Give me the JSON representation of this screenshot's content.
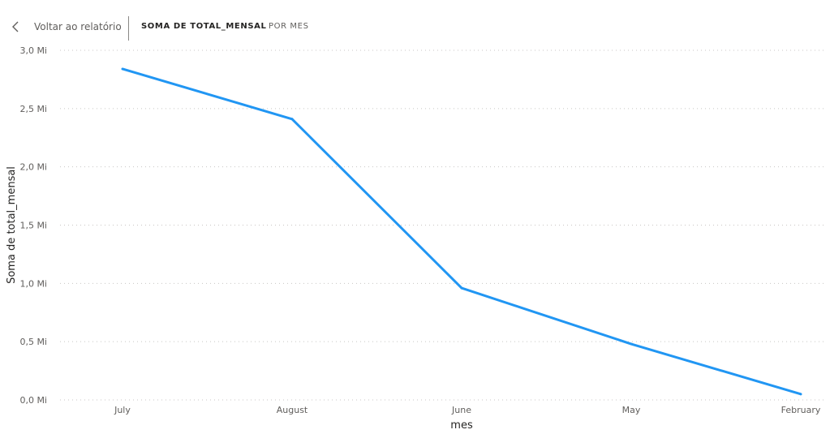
{
  "toolbar": {
    "back_label": "Voltar ao relatório",
    "tabs": [
      {
        "label": "SOMA DE TOTAL_MENSAL",
        "active": true
      },
      {
        "label": "POR MES",
        "active": false
      }
    ]
  },
  "colors": {
    "line": "#2196f3",
    "grid": "#c8c6c4",
    "text": "#605e5c",
    "axis_title": "#252423"
  },
  "chart_data": {
    "type": "line",
    "title": "",
    "xlabel": "mes",
    "ylabel": "Soma de total_mensal",
    "categories": [
      "July",
      "August",
      "June",
      "May",
      "February"
    ],
    "series": [
      {
        "values": [
          2.84,
          2.41,
          0.96,
          0.48,
          0.05
        ]
      }
    ],
    "y_unit": "Mi",
    "ylim": [
      0,
      3.0
    ],
    "yticks": [
      "0,0 Mi",
      "0,5 Mi",
      "1,0 Mi",
      "1,5 Mi",
      "2,0 Mi",
      "2,5 Mi",
      "3,0 Mi"
    ],
    "ytick_values": [
      0,
      0.5,
      1.0,
      1.5,
      2.0,
      2.5,
      3.0
    ],
    "grid": true,
    "grid_style": "dotted"
  }
}
